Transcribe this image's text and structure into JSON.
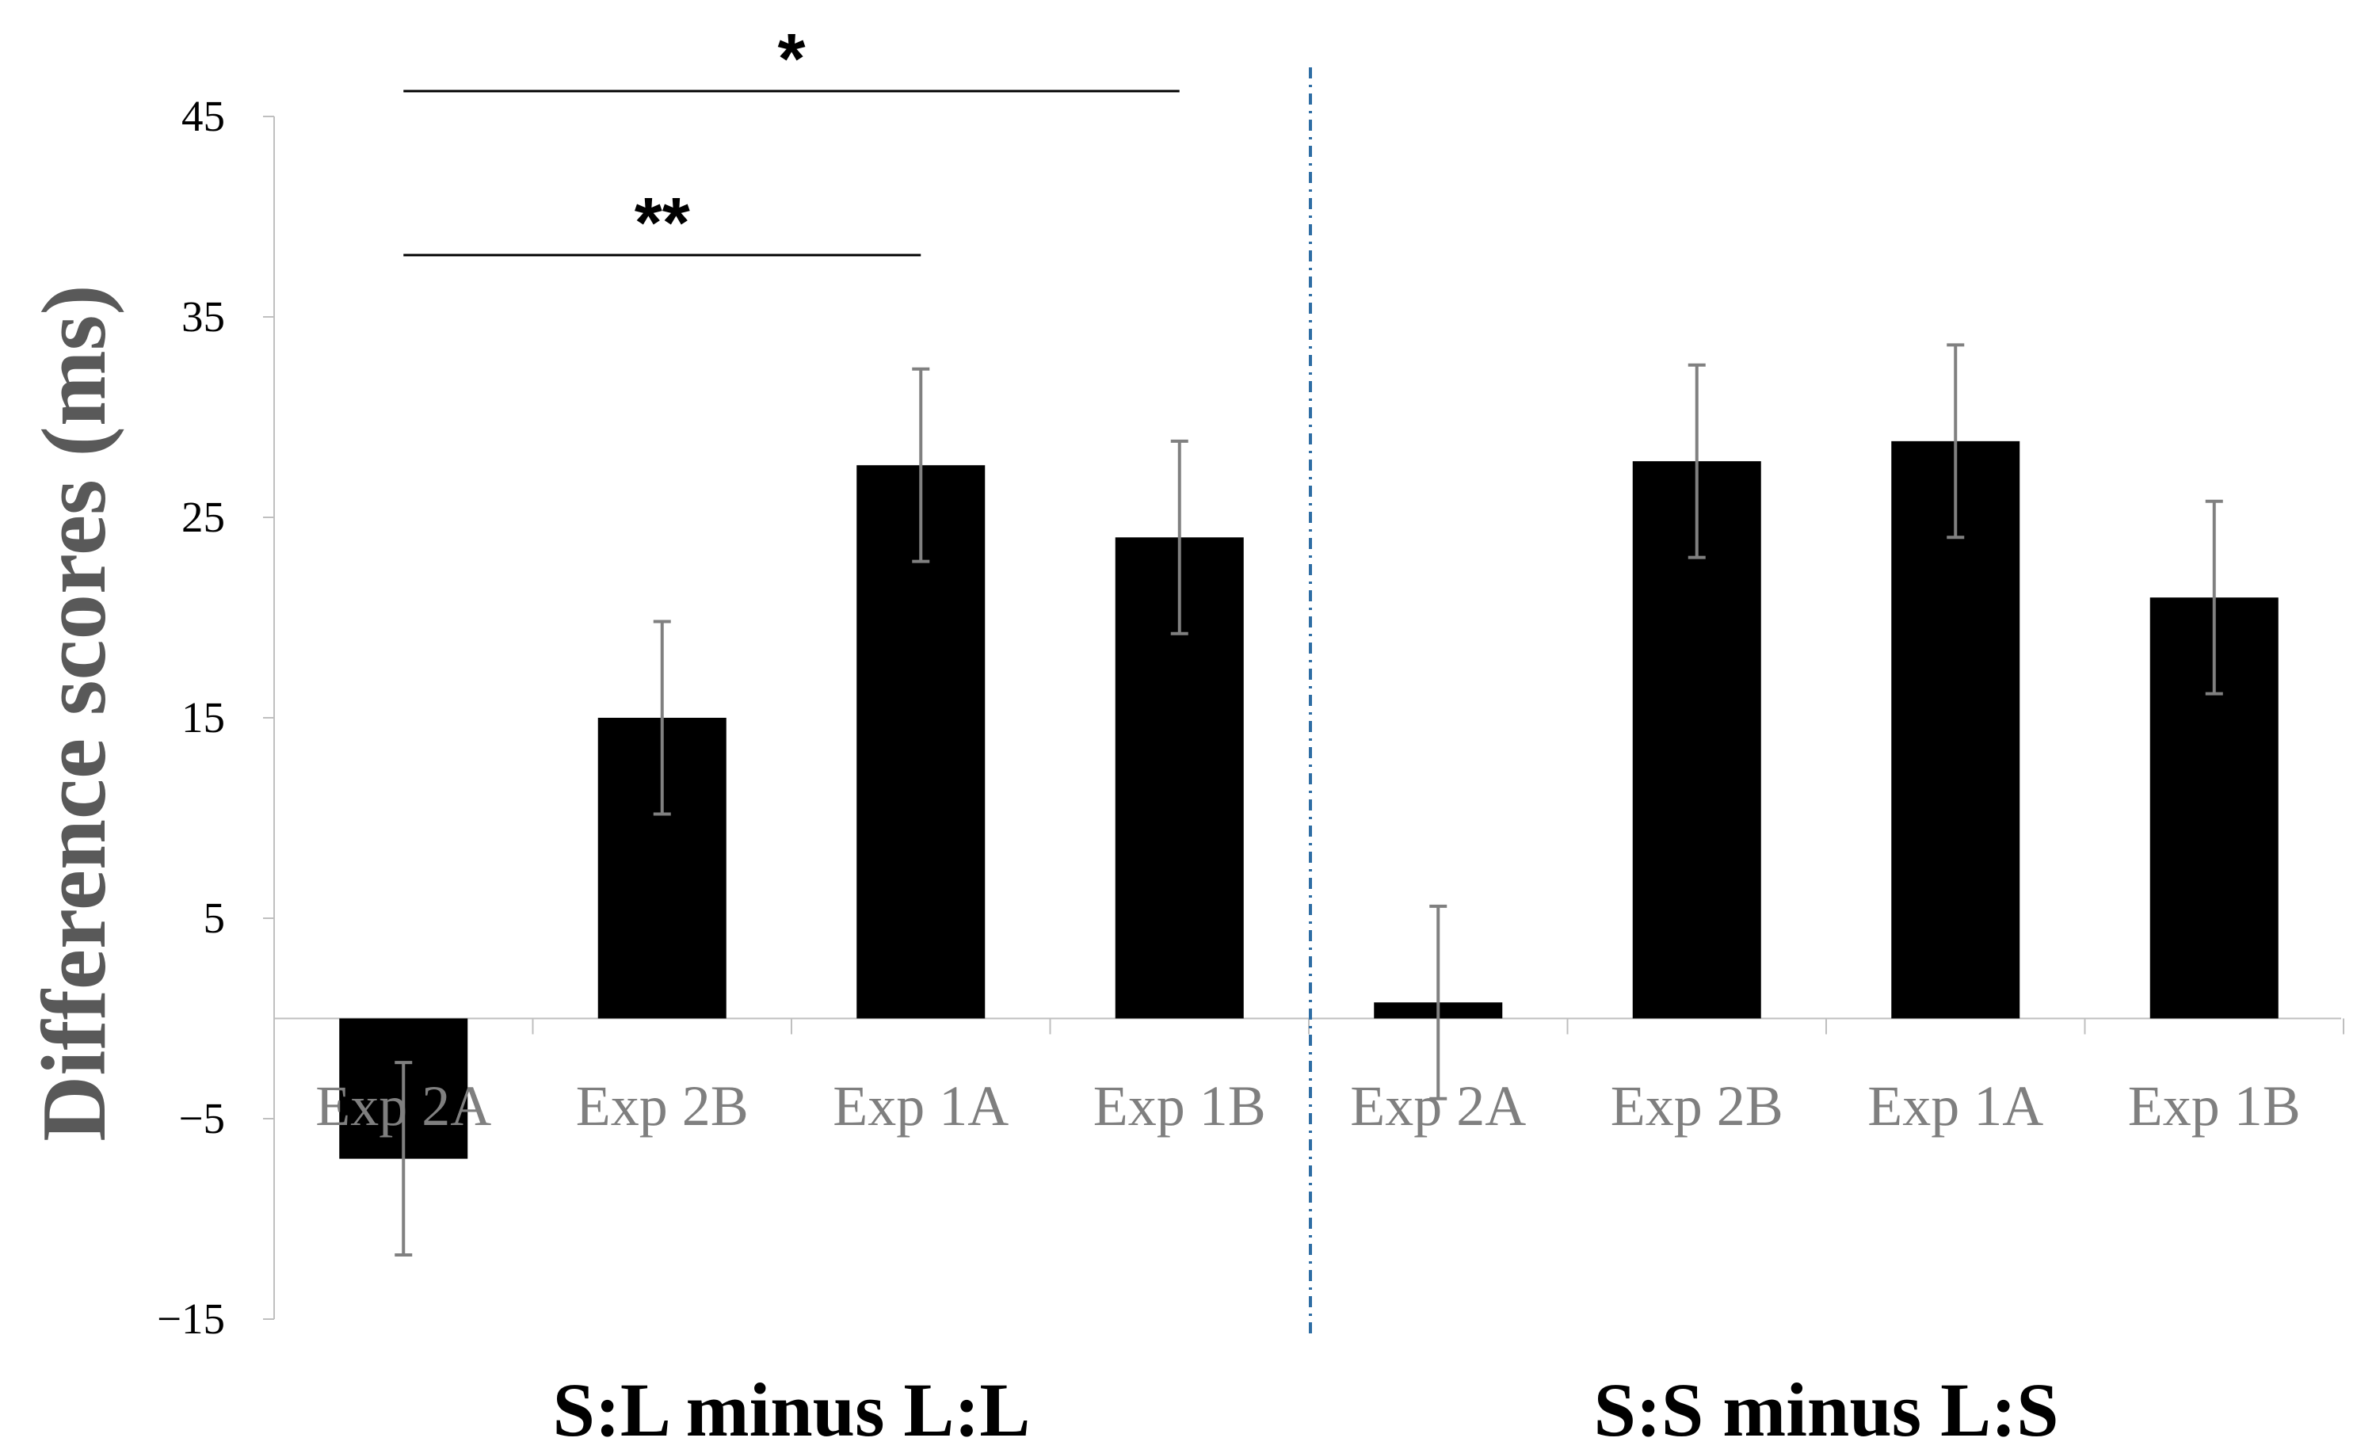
{
  "chart_data": {
    "type": "bar",
    "ylabel": "Difference scores (ms)",
    "ylim": [
      -15,
      45
    ],
    "yticks": [
      45,
      35,
      25,
      15,
      5,
      -5,
      -15
    ],
    "ytick_labels": [
      "45",
      "35",
      "25",
      "15",
      "5",
      "−5",
      "−15"
    ],
    "grid": false,
    "groups": [
      {
        "label": "S:L minus L:L",
        "categories": [
          "Exp 2A",
          "Exp 2B",
          "Exp 1A",
          "Exp 1B"
        ],
        "values": [
          -7,
          15,
          27.6,
          24
        ],
        "errors": [
          4.8,
          4.8,
          4.8,
          4.8
        ]
      },
      {
        "label": "S:S minus L:S",
        "categories": [
          "Exp 2A",
          "Exp 2B",
          "Exp 1A",
          "Exp 1B"
        ],
        "values": [
          0.8,
          27.8,
          28.8,
          21
        ],
        "errors": [
          4.8,
          4.8,
          4.8,
          4.8
        ]
      }
    ],
    "significance": [
      {
        "label": "*",
        "from": [
          0,
          0
        ],
        "to": [
          0,
          3
        ]
      },
      {
        "label": "**",
        "from": [
          0,
          0
        ],
        "to": [
          0,
          2
        ]
      }
    ],
    "colors": {
      "bar": "#000000",
      "error": "#808080",
      "divider": "#2e6da4",
      "axis": "#bfbfbf",
      "tick_text": "#7f7f7f",
      "ylabel_text": "#595959"
    }
  }
}
